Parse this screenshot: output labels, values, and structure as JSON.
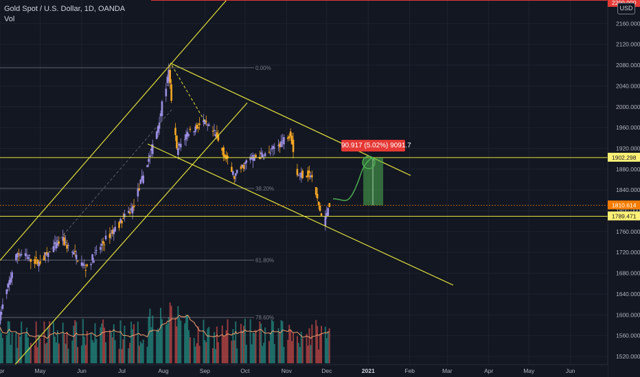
{
  "header": {
    "symbol_line": "Gold Spot / U.S. Dollar, 1D, OANDA",
    "indicator": "Vol"
  },
  "currency_button": "USD",
  "measure_label": "90.917 (5.02%) 9091.7",
  "colors": {
    "background": "#131722",
    "candle_up": "#9c8fe3",
    "candle_down": "#f5a623",
    "vol_up": "#26a69a",
    "vol_down": "#ef5350",
    "vol_ma": "#f0a070",
    "trendline": "#e5e53a",
    "forecast": "#4caf50",
    "price_label_orange": "#f57c00",
    "price_label_yellow": "#fff176",
    "fib": "#787b86"
  },
  "chart_data": {
    "type": "candlestick",
    "title": "Gold Spot / U.S. Dollar, 1D, OANDA",
    "y_axis": {
      "ticks": [
        "2160.000",
        "2120.000",
        "2080.000",
        "2040.000",
        "2000.000",
        "1960.000",
        "1920.000",
        "1880.000",
        "1840.000",
        "1800.000",
        "1760.000",
        "1720.000",
        "1680.000",
        "1640.000",
        "1600.000",
        "1560.000",
        "1520.000"
      ],
      "range": [
        1505,
        2205
      ]
    },
    "x_axis": {
      "ticks": [
        "Apr",
        "May",
        "Jun",
        "Jul",
        "Aug",
        "Sep",
        "Oct",
        "Nov",
        "Dec",
        "2021",
        "Feb",
        "Mar",
        "Apr",
        "May",
        "Jun"
      ]
    },
    "price_labels": [
      {
        "text": "2200.000",
        "color": "red"
      },
      {
        "text": "1902.298",
        "color": "yellow"
      },
      {
        "text": "1810.614",
        "color": "orange"
      },
      {
        "text": "1789.471",
        "color": "yellow"
      }
    ],
    "fib_levels": [
      {
        "label": "0.00%",
        "price": 2075
      },
      {
        "label": "38.20%",
        "price": 1843
      },
      {
        "label": "61.80%",
        "price": 1705
      },
      {
        "label": "78.60%",
        "price": 1595
      }
    ],
    "horizontal_lines": [
      1902.298,
      1789.471
    ],
    "price_path": [
      {
        "t": "2020-04-01",
        "p": 1590
      },
      {
        "t": "2020-04-15",
        "p": 1720
      },
      {
        "t": "2020-05-01",
        "p": 1700
      },
      {
        "t": "2020-05-18",
        "p": 1745
      },
      {
        "t": "2020-06-05",
        "p": 1690
      },
      {
        "t": "2020-06-20",
        "p": 1745
      },
      {
        "t": "2020-07-10",
        "p": 1805
      },
      {
        "t": "2020-07-27",
        "p": 1940
      },
      {
        "t": "2020-08-06",
        "p": 2065
      },
      {
        "t": "2020-08-12",
        "p": 1915
      },
      {
        "t": "2020-08-20",
        "p": 1950
      },
      {
        "t": "2020-09-01",
        "p": 1970
      },
      {
        "t": "2020-09-10",
        "p": 1945
      },
      {
        "t": "2020-09-24",
        "p": 1865
      },
      {
        "t": "2020-10-05",
        "p": 1900
      },
      {
        "t": "2020-10-20",
        "p": 1910
      },
      {
        "t": "2020-11-05",
        "p": 1950
      },
      {
        "t": "2020-11-10",
        "p": 1870
      },
      {
        "t": "2020-11-20",
        "p": 1870
      },
      {
        "t": "2020-11-30",
        "p": 1770
      },
      {
        "t": "2020-12-03",
        "p": 1812
      }
    ],
    "forecast_target": 1902.298
  }
}
